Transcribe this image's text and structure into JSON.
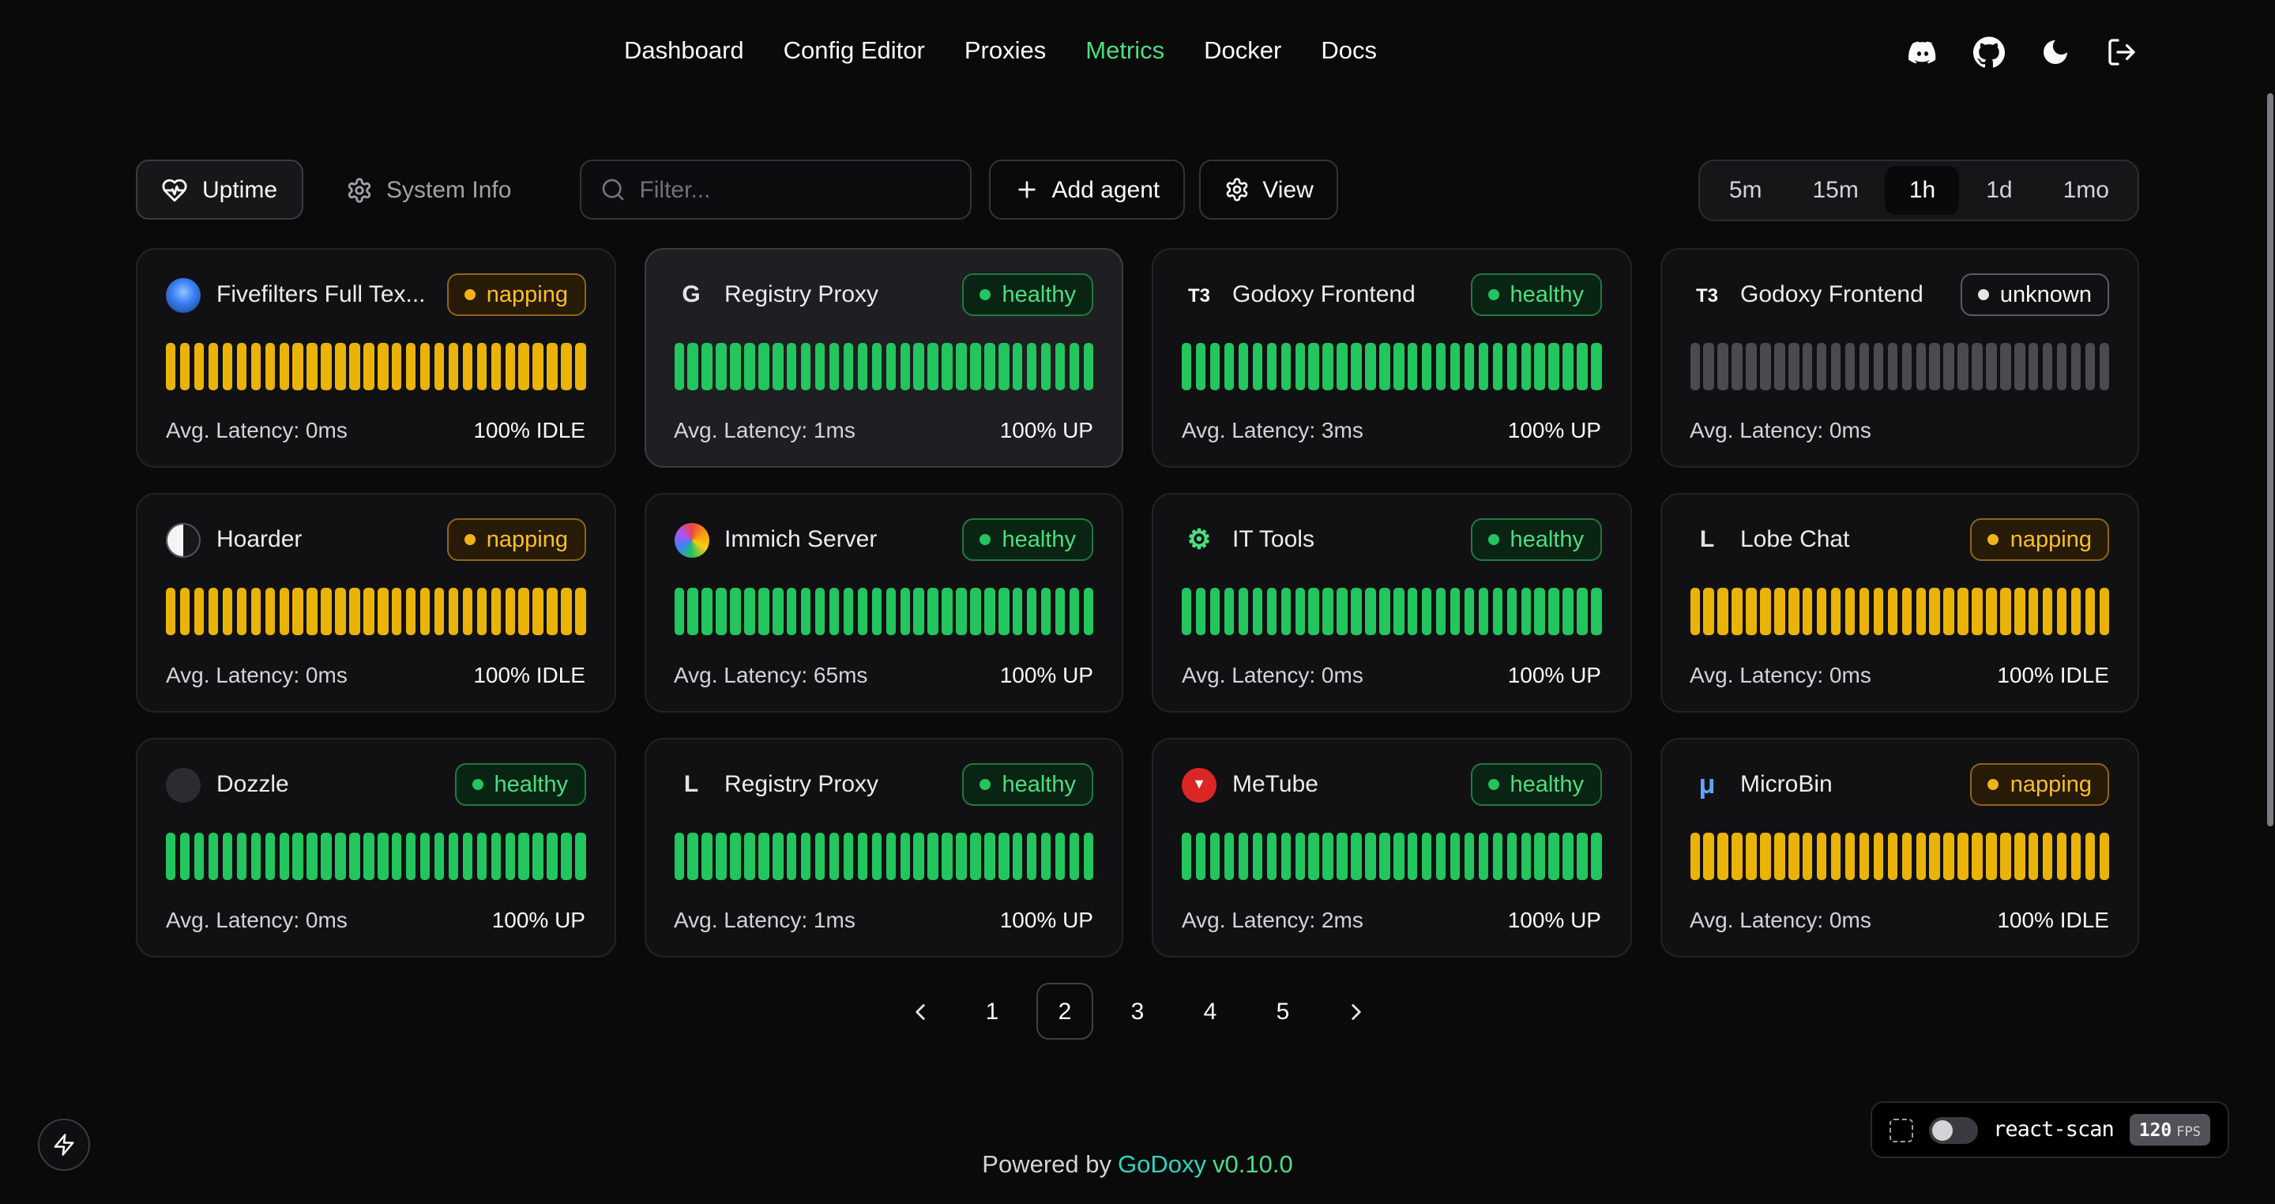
{
  "nav": {
    "items": [
      {
        "label": "Dashboard",
        "active": false
      },
      {
        "label": "Config Editor",
        "active": false
      },
      {
        "label": "Proxies",
        "active": false
      },
      {
        "label": "Metrics",
        "active": true
      },
      {
        "label": "Docker",
        "active": false
      },
      {
        "label": "Docs",
        "active": false
      }
    ],
    "header_icons": [
      "discord-icon",
      "github-icon",
      "moon-icon",
      "logout-icon"
    ]
  },
  "toolbar": {
    "uptime_label": "Uptime",
    "system_info_label": "System Info",
    "filter_placeholder": "Filter...",
    "add_agent_label": "Add agent",
    "view_label": "View",
    "time_ranges": [
      {
        "label": "5m",
        "active": false
      },
      {
        "label": "15m",
        "active": false
      },
      {
        "label": "1h",
        "active": true
      },
      {
        "label": "1d",
        "active": false
      },
      {
        "label": "1mo",
        "active": false
      }
    ]
  },
  "status_colors": {
    "napping": {
      "bar": "#eab308",
      "text": "#fbbf24",
      "border": "#8f6514",
      "bg": "#271a06",
      "dot": "#f0b317"
    },
    "healthy": {
      "bar": "#22c55e",
      "text": "#4ade80",
      "border": "#1f7a3f",
      "bg": "#0a2414",
      "dot": "#22c55e"
    },
    "unknown": {
      "bar": "#4a4a51",
      "text": "#fafafa",
      "border": "#5a5a61",
      "bg": "#101013",
      "dot": "#e4e4e7"
    }
  },
  "bar_count": 30,
  "cards": [
    {
      "title": "Fivefilters Full Tex...",
      "status": "napping",
      "latency": "Avg. Latency: 0ms",
      "uptime": "100% IDLE",
      "highlight": false,
      "icon": {
        "name": "fivefilters-icon",
        "kind": "circle",
        "bg": "radial-gradient(circle at 50% 40%, #93c5fd 0%, #3b82f6 40%, #1e3a8a 100%)"
      }
    },
    {
      "title": "Registry Proxy",
      "status": "healthy",
      "latency": "Avg. Latency: 1ms",
      "uptime": "100% UP",
      "highlight": true,
      "icon": {
        "name": "registry-proxy-icon",
        "kind": "letter",
        "glyph": "G",
        "color": "#e4e4e7",
        "size": 15
      }
    },
    {
      "title": "Godoxy Frontend",
      "status": "healthy",
      "latency": "Avg. Latency: 3ms",
      "uptime": "100% UP",
      "highlight": false,
      "icon": {
        "name": "godoxy-frontend-icon",
        "kind": "letter",
        "glyph": "T3",
        "color": "#fafafa",
        "size": 12
      }
    },
    {
      "title": "Godoxy Frontend",
      "status": "unknown",
      "latency": "Avg. Latency: 0ms",
      "uptime": "",
      "highlight": false,
      "icon": {
        "name": "godoxy-frontend-icon",
        "kind": "letter",
        "glyph": "T3",
        "color": "#fafafa",
        "size": 12
      }
    },
    {
      "title": "Hoarder",
      "status": "napping",
      "latency": "Avg. Latency: 0ms",
      "uptime": "100% IDLE",
      "highlight": false,
      "icon": {
        "name": "hoarder-icon",
        "kind": "circle",
        "bg": "linear-gradient(90deg, #f4f4f5 50%, #18181b 50%)",
        "border": "#52525b"
      }
    },
    {
      "title": "Immich Server",
      "status": "healthy",
      "latency": "Avg. Latency: 65ms",
      "uptime": "100% UP",
      "highlight": false,
      "icon": {
        "name": "immich-icon",
        "kind": "circle",
        "bg": "conic-gradient(from 0deg, #ef4444, #f59e0b, #facc15, #22c55e, #3b82f6, #a855f7, #ef4444)"
      }
    },
    {
      "title": "IT Tools",
      "status": "healthy",
      "latency": "Avg. Latency: 0ms",
      "uptime": "100% UP",
      "highlight": false,
      "icon": {
        "name": "it-tools-icon",
        "kind": "letter",
        "glyph": "⚙",
        "color": "#4ade80",
        "size": 17
      }
    },
    {
      "title": "Lobe Chat",
      "status": "napping",
      "latency": "Avg. Latency: 0ms",
      "uptime": "100% IDLE",
      "highlight": false,
      "icon": {
        "name": "lobe-chat-icon",
        "kind": "letter",
        "glyph": "L",
        "color": "#e4e4e7",
        "size": 15
      }
    },
    {
      "title": "Dozzle",
      "status": "healthy",
      "latency": "Avg. Latency: 0ms",
      "uptime": "100% UP",
      "highlight": false,
      "icon": {
        "name": "dozzle-icon",
        "kind": "circle",
        "bg": "#2b2b31"
      }
    },
    {
      "title": "Registry Proxy",
      "status": "healthy",
      "latency": "Avg. Latency: 1ms",
      "uptime": "100% UP",
      "highlight": false,
      "icon": {
        "name": "registry-proxy-icon",
        "kind": "letter",
        "glyph": "L",
        "color": "#e4e4e7",
        "size": 15
      }
    },
    {
      "title": "MeTube",
      "status": "healthy",
      "latency": "Avg. Latency: 2ms",
      "uptime": "100% UP",
      "highlight": false,
      "icon": {
        "name": "metube-icon",
        "kind": "circle",
        "bg": "#dc2626",
        "glyph": "▼",
        "color": "#ffffff"
      }
    },
    {
      "title": "MicroBin",
      "status": "napping",
      "latency": "Avg. Latency: 0ms",
      "uptime": "100% IDLE",
      "highlight": false,
      "icon": {
        "name": "microbin-icon",
        "kind": "letter",
        "glyph": "μ",
        "color": "#60a5fa",
        "size": 17
      }
    }
  ],
  "pagination": {
    "pages": [
      "1",
      "2",
      "3",
      "4",
      "5"
    ],
    "current": "2"
  },
  "react_scan": {
    "label": "react-scan",
    "fps_value": "120",
    "fps_unit": "FPS"
  },
  "footer": {
    "prefix": "Powered by",
    "brand": "GoDoxy",
    "version": "v0.10.0"
  }
}
